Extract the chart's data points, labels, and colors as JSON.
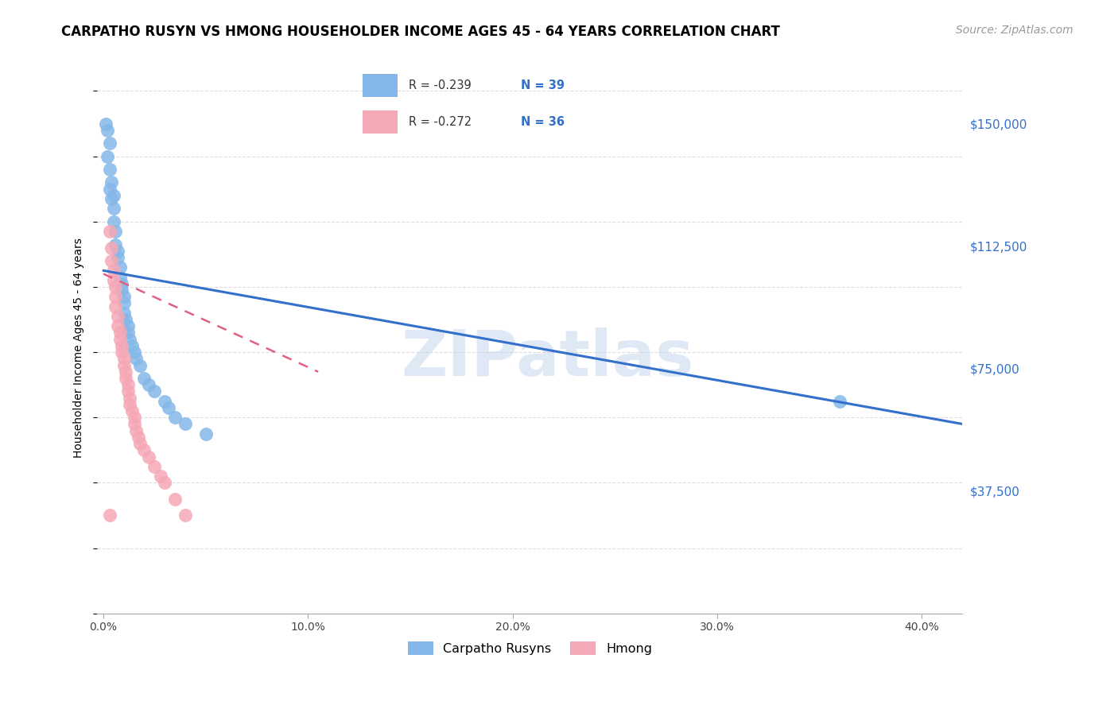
{
  "title": "CARPATHO RUSYN VS HMONG HOUSEHOLDER INCOME AGES 45 - 64 YEARS CORRELATION CHART",
  "source": "Source: ZipAtlas.com",
  "xlabel_ticks": [
    "0.0%",
    "10.0%",
    "20.0%",
    "30.0%",
    "40.0%"
  ],
  "xlabel_tick_vals": [
    0.0,
    0.1,
    0.2,
    0.3,
    0.4
  ],
  "ylabel": "Householder Income Ages 45 - 64 years",
  "ylabel_ticks": [
    "$37,500",
    "$75,000",
    "$112,500",
    "$150,000"
  ],
  "ylabel_tick_vals": [
    37500,
    75000,
    112500,
    150000
  ],
  "ylim": [
    0,
    162500
  ],
  "xlim": [
    -0.003,
    0.42
  ],
  "legend_labels": [
    "Carpatho Rusyns",
    "Hmong"
  ],
  "legend_R": [
    "R = -0.239",
    "R = -0.272"
  ],
  "legend_N": [
    "N = 39",
    "N = 36"
  ],
  "blue_color": "#85B8E8",
  "pink_color": "#F5A8B5",
  "trend_blue": "#3370CC",
  "trend_pink": "#E06080",
  "watermark": "ZIPatlas",
  "carpatho_x": [
    0.001,
    0.002,
    0.002,
    0.003,
    0.003,
    0.004,
    0.004,
    0.005,
    0.005,
    0.005,
    0.006,
    0.006,
    0.007,
    0.007,
    0.008,
    0.008,
    0.009,
    0.009,
    0.01,
    0.01,
    0.01,
    0.011,
    0.012,
    0.012,
    0.013,
    0.014,
    0.015,
    0.016,
    0.018,
    0.02,
    0.022,
    0.025,
    0.03,
    0.032,
    0.035,
    0.04,
    0.05,
    0.36,
    0.003
  ],
  "carpatho_y": [
    150000,
    148000,
    140000,
    136000,
    130000,
    132000,
    127000,
    124000,
    120000,
    128000,
    117000,
    113000,
    111000,
    109000,
    106000,
    103000,
    101000,
    99000,
    97000,
    95000,
    92000,
    90000,
    88000,
    86000,
    84000,
    82000,
    80000,
    78000,
    76000,
    72000,
    70000,
    68000,
    65000,
    63000,
    60000,
    58000,
    55000,
    65000,
    144000
  ],
  "hmong_x": [
    0.003,
    0.004,
    0.004,
    0.005,
    0.005,
    0.006,
    0.006,
    0.006,
    0.007,
    0.007,
    0.008,
    0.008,
    0.009,
    0.009,
    0.01,
    0.01,
    0.011,
    0.011,
    0.012,
    0.012,
    0.013,
    0.013,
    0.014,
    0.015,
    0.015,
    0.016,
    0.017,
    0.018,
    0.02,
    0.022,
    0.025,
    0.028,
    0.03,
    0.035,
    0.04,
    0.003
  ],
  "hmong_y": [
    117000,
    112000,
    108000,
    105000,
    102000,
    100000,
    97000,
    94000,
    91000,
    88000,
    86000,
    84000,
    82000,
    80000,
    78000,
    76000,
    74000,
    72000,
    70000,
    68000,
    66000,
    64000,
    62000,
    60000,
    58000,
    56000,
    54000,
    52000,
    50000,
    48000,
    45000,
    42000,
    40000,
    35000,
    30000,
    30000
  ],
  "blue_trend_x": [
    0.0,
    0.42
  ],
  "blue_trend_y": [
    105000,
    58000
  ],
  "pink_trend_x": [
    0.0,
    0.105
  ],
  "pink_trend_y": [
    104000,
    74000
  ],
  "grid_color": "#DDDDDD",
  "title_fontsize": 12,
  "axis_label_fontsize": 10,
  "tick_fontsize": 10,
  "source_fontsize": 10
}
